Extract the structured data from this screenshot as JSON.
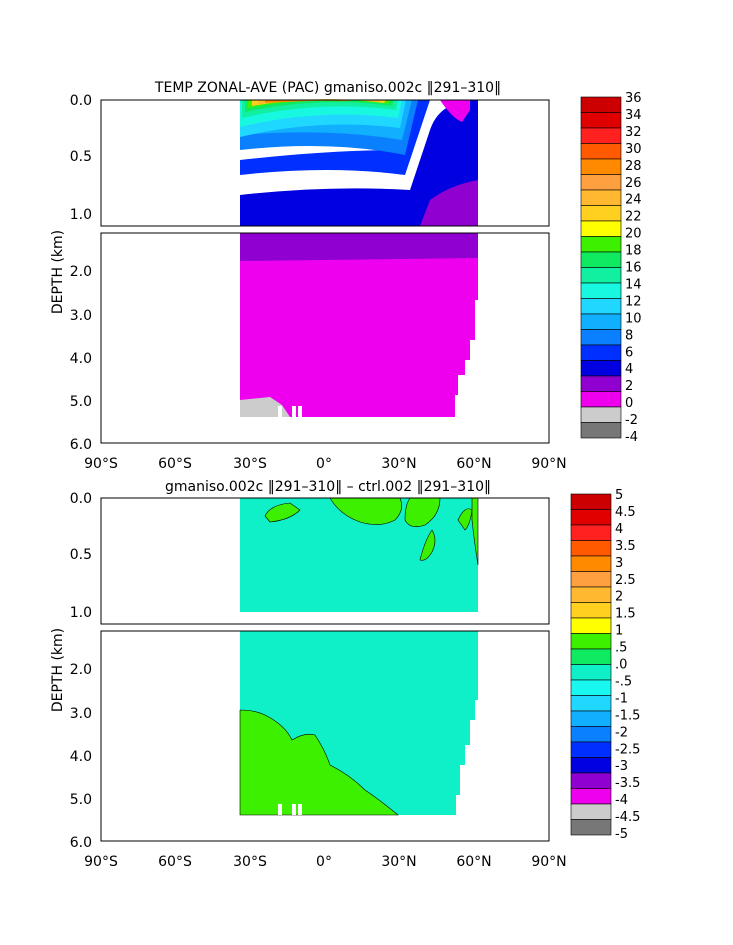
{
  "chart_data": [
    {
      "type": "heatmap",
      "title": "TEMP ZONAL-AVE (PAC) gmaniso.002c ‖291–310‖",
      "ylabel": "DEPTH (km)",
      "x_ticks": [
        "90°S",
        "60°S",
        "30°S",
        "0°",
        "30°N",
        "60°N",
        "90°N"
      ],
      "y_ticks_upper": [
        "0.0",
        "0.5",
        "1.0"
      ],
      "y_ticks_lower": [
        "2.0",
        "3.0",
        "4.0",
        "5.0",
        "6.0"
      ],
      "xlim": [
        -90,
        90
      ],
      "ylim_km": [
        0,
        6
      ],
      "colorbar": {
        "labels": [
          "36",
          "34",
          "32",
          "30",
          "28",
          "26",
          "24",
          "22",
          "20",
          "18",
          "16",
          "14",
          "12",
          "10",
          "8",
          "6",
          "4",
          "2",
          "0",
          "-2",
          "-4"
        ],
        "colors": [
          "#cc0000",
          "#e00000",
          "#ff2020",
          "#ff5a00",
          "#ff8a00",
          "#ffa040",
          "#ffb830",
          "#ffd020",
          "#ffff00",
          "#3cf000",
          "#10ea60",
          "#10f0a0",
          "#18f8e0",
          "#20d8ff",
          "#10b0ff",
          "#0a80ff",
          "#0030ff",
          "#0000e0",
          "#9000d0",
          "#ee00ee",
          "#cccccc",
          "#777777"
        ]
      }
    },
    {
      "type": "heatmap",
      "title": "gmaniso.002c ‖291–310‖ – ctrl.002 ‖291–310‖",
      "ylabel": "DEPTH (km)",
      "x_ticks": [
        "90°S",
        "60°S",
        "30°S",
        "0°",
        "30°N",
        "60°N",
        "90°N"
      ],
      "y_ticks_upper": [
        "0.0",
        "0.5",
        "1.0"
      ],
      "y_ticks_lower": [
        "2.0",
        "3.0",
        "4.0",
        "5.0",
        "6.0"
      ],
      "xlim": [
        -90,
        90
      ],
      "ylim_km": [
        0,
        6
      ],
      "colorbar": {
        "labels": [
          "5",
          "4.5",
          "4",
          "3.5",
          "3",
          "2.5",
          "2",
          "1.5",
          "1",
          ".5",
          ".0",
          "-.5",
          "-1",
          "-1.5",
          "-2",
          "-2.5",
          "-3",
          "-3.5",
          "-4",
          "-4.5",
          "-5"
        ],
        "colors": [
          "#cc0000",
          "#e00000",
          "#ff2020",
          "#ff5a00",
          "#ff8a00",
          "#ffa040",
          "#ffb830",
          "#ffd020",
          "#ffff00",
          "#3cf000",
          "#10ea60",
          "#10f0c8",
          "#18f8f0",
          "#20d8ff",
          "#10b0ff",
          "#0a80ff",
          "#0030ff",
          "#0000e0",
          "#9000d0",
          "#ee00ee",
          "#cccccc",
          "#777777"
        ]
      }
    }
  ]
}
